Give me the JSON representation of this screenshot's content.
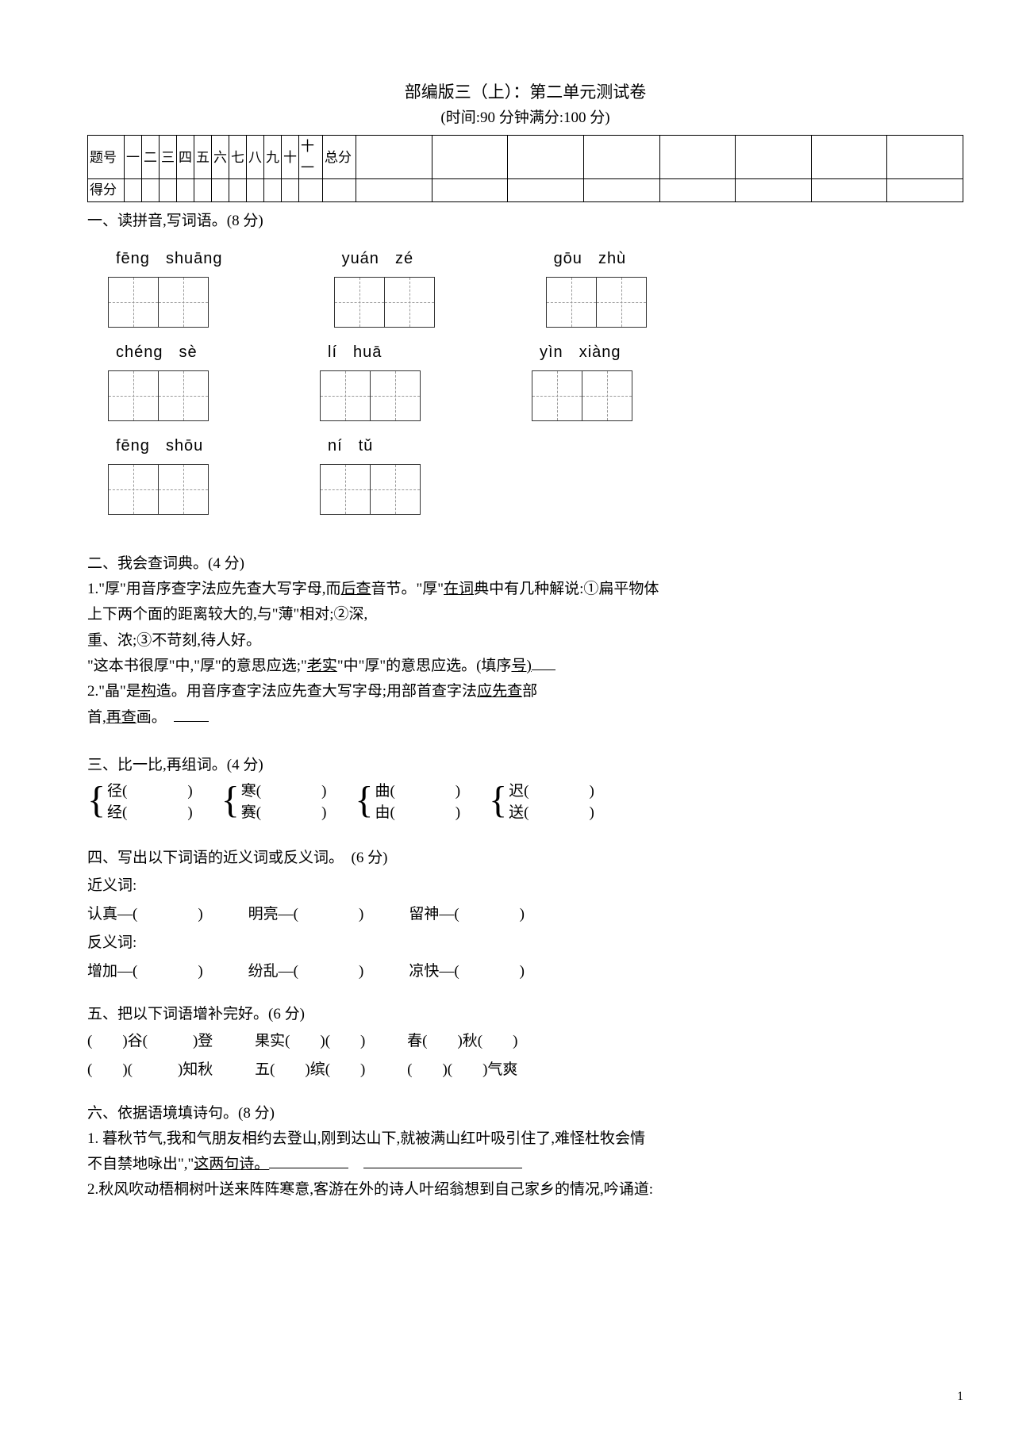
{
  "header": {
    "title": "部编版三（上）：第二单元测试卷",
    "subtitle": "(时间:90 分钟满分:100 分)"
  },
  "scoreTable": {
    "row1Label": "题号",
    "row1Cells": [
      "一",
      "二",
      "三",
      "四",
      "五",
      "六",
      "七",
      "八",
      "九",
      "十",
      "十一",
      "总分",
      "",
      "",
      "",
      "",
      "",
      "",
      "",
      ""
    ],
    "row2Label": "得分",
    "row2Cells": [
      "",
      "",
      "",
      "",
      "",
      "",
      "",
      "",
      "",
      "",
      "",
      "",
      "",
      "",
      "",
      "",
      "",
      "",
      "",
      ""
    ]
  },
  "section1": {
    "heading": "一、读拼音,写词语。(8 分)",
    "rows": [
      [
        {
          "py": [
            "fēng",
            "shuāng"
          ],
          "cells": 2
        },
        {
          "py": [
            "yuán",
            "zé"
          ],
          "cells": 2
        },
        {
          "py": [
            "gōu",
            "zhù"
          ],
          "cells": 2
        }
      ],
      [
        {
          "py": [
            "chéng",
            "sè"
          ],
          "cells": 2
        },
        {
          "py": [
            "lí",
            "huā"
          ],
          "cells": 2
        },
        {
          "py": [
            "yìn",
            "xiàng"
          ],
          "cells": 2
        }
      ],
      [
        {
          "py": [
            "fēng",
            "shōu"
          ],
          "cells": 2
        },
        {
          "py": [
            "ní",
            "tǔ"
          ],
          "cells": 2
        }
      ]
    ]
  },
  "section2": {
    "heading": "二、我会查词典。(4 分)",
    "l1a": "1.\"厚\"用音序查字法应先查大写字母,而",
    "l1u1": "后查",
    "l1b": "音节。\"厚\"",
    "l1u2": "在词",
    "l1c": "典中有几种解说:①扁平物体",
    "l2": "上下两个面的距离较大的,与\"薄\"相对;②深,",
    "l3": "重、浓;③不苛刻,待人好。",
    "l4a": "\"这本书很厚\"中,\"厚\"的意思应选;\"",
    "l4u1": "老实",
    "l4b": "\"中\"厚\"的意思应选。(填序",
    "l4u2": "号)",
    "l5a": "2.\"晶\"是",
    "l5u1": "构",
    "l5b": "造。用音序查字法应先查大写字母;用部首查字法",
    "l5u2": "应先查",
    "l5c": "部",
    "l6a": "首,",
    "l6u1": "再查",
    "l6b": "画。"
  },
  "section3": {
    "heading": "三、比一比,再组词。(4 分)",
    "pairs": [
      {
        "a": "径",
        "b": "经"
      },
      {
        "a": "寒",
        "b": "赛"
      },
      {
        "a": "曲",
        "b": "由"
      },
      {
        "a": "迟",
        "b": "送"
      }
    ]
  },
  "section4": {
    "heading": "四、写出以下词语的近义词或反义词。　(6 分)",
    "synLabel": "近义词:",
    "synItems": [
      "认真—(　　　　)",
      "明亮—(　　　　)",
      "留神—(　　　　)"
    ],
    "antLabel": "反义词:",
    "antItems": [
      "增加—(　　　　)",
      "纷乱—(　　　　)",
      "凉快—(　　　　)"
    ]
  },
  "section5": {
    "heading": "五、把以下词语增补完好。(6 分)",
    "row1": [
      "(　　)谷(　　　)登",
      "果实(　　)(　　)",
      "春(　　)秋(　　)"
    ],
    "row2": [
      "(　　)(　　　)知秋",
      "五(　　)缤(　　)",
      "(　　)(　　)气爽"
    ]
  },
  "section6": {
    "heading": "六、依据语境填诗句。(8 分)",
    "l1": "1. 暮秋节气,我和气朋友相约去登山,刚到达山下,就被满山红叶吸引住了,难怪杜牧会情",
    "l2a": "不自禁地咏出\",\"",
    "l2u": "这两句诗。",
    "l3": "2.秋风吹动梧桐树叶送来阵阵寒意,客游在外的诗人叶绍翁想到自己家乡的情况,吟诵道:"
  },
  "pageNumber": "1"
}
